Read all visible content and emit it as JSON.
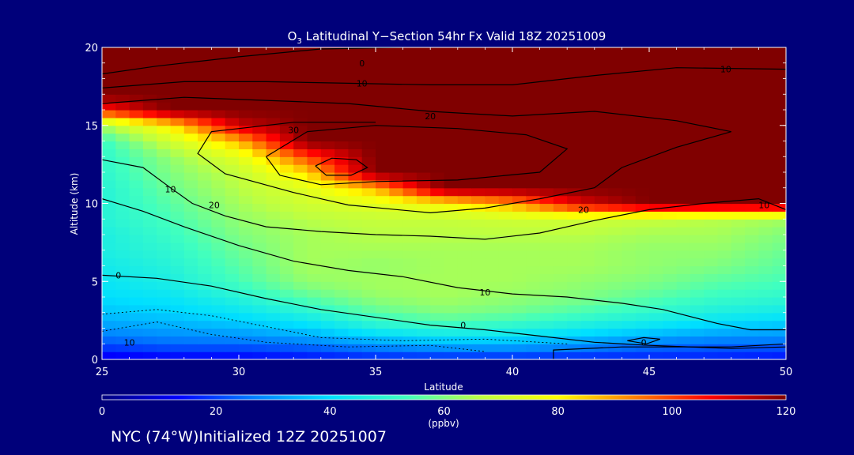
{
  "chart_data": {
    "type": "heatmap",
    "title_main": "O",
    "title_sub": "3",
    "title_rest": " Latitudinal Y−Section 54hr  Fx Valid 18Z 20251009",
    "xlabel": "Latitude",
    "ylabel": "Altitude (km)",
    "xlim": [
      25,
      50
    ],
    "ylim": [
      0,
      20
    ],
    "xticks": [
      "25",
      "30",
      "35",
      "40",
      "45",
      "50"
    ],
    "yticks": [
      "0",
      "5",
      "10",
      "15",
      "20"
    ],
    "x": [
      25,
      27.5,
      30,
      32.5,
      35,
      37.5,
      40,
      42.5,
      45,
      47.5,
      50
    ],
    "y": [
      0,
      1,
      2,
      3,
      4,
      5,
      6,
      7,
      8,
      9,
      10,
      11,
      12,
      13,
      14,
      15,
      16,
      17,
      18,
      19,
      20
    ],
    "z": [
      [
        10,
        12,
        12,
        14,
        16,
        16,
        16,
        16,
        16,
        16,
        14
      ],
      [
        22,
        24,
        24,
        26,
        30,
        34,
        34,
        30,
        26,
        24,
        24
      ],
      [
        30,
        32,
        34,
        38,
        46,
        50,
        48,
        44,
        40,
        36,
        34
      ],
      [
        36,
        38,
        42,
        48,
        56,
        60,
        58,
        54,
        50,
        46,
        44
      ],
      [
        40,
        42,
        48,
        56,
        62,
        64,
        62,
        60,
        56,
        52,
        50
      ],
      [
        42,
        46,
        54,
        62,
        64,
        64,
        64,
        62,
        60,
        56,
        54
      ],
      [
        44,
        48,
        56,
        64,
        62,
        64,
        64,
        64,
        62,
        60,
        56
      ],
      [
        46,
        50,
        58,
        64,
        64,
        64,
        64,
        64,
        62,
        62,
        58
      ],
      [
        46,
        52,
        60,
        64,
        66,
        66,
        66,
        66,
        64,
        64,
        60
      ],
      [
        48,
        54,
        62,
        66,
        68,
        68,
        70,
        70,
        68,
        66,
        64
      ],
      [
        48,
        56,
        64,
        70,
        74,
        80,
        90,
        110,
        120,
        120,
        120
      ],
      [
        48,
        58,
        66,
        74,
        88,
        120,
        120,
        120,
        120,
        120,
        120
      ],
      [
        50,
        60,
        68,
        84,
        120,
        120,
        120,
        120,
        120,
        120,
        120
      ],
      [
        50,
        62,
        74,
        100,
        120,
        120,
        120,
        120,
        120,
        120,
        120
      ],
      [
        52,
        70,
        88,
        120,
        120,
        120,
        120,
        120,
        120,
        120,
        120
      ],
      [
        64,
        82,
        112,
        120,
        120,
        120,
        120,
        120,
        120,
        120,
        120
      ],
      [
        104,
        120,
        120,
        120,
        120,
        120,
        120,
        120,
        120,
        120,
        120
      ],
      [
        120,
        120,
        120,
        120,
        120,
        120,
        120,
        120,
        120,
        120,
        120
      ],
      [
        120,
        120,
        120,
        120,
        120,
        120,
        120,
        120,
        120,
        120,
        120
      ],
      [
        120,
        120,
        120,
        120,
        120,
        120,
        120,
        120,
        120,
        120,
        120
      ],
      [
        120,
        120,
        120,
        120,
        120,
        120,
        120,
        120,
        120,
        120,
        120
      ]
    ],
    "colorbar": {
      "min": 0,
      "max": 120,
      "ticks": [
        "0",
        "20",
        "40",
        "60",
        "80",
        "100",
        "120"
      ],
      "unit": "(ppbv)",
      "colors": [
        "#00007f",
        "#0000ff",
        "#0080ff",
        "#00e0ff",
        "#40ffbf",
        "#bfff40",
        "#ffff00",
        "#ff8000",
        "#ff0000",
        "#800000"
      ]
    },
    "contour_labels": [
      {
        "text": "0",
        "x": 34.5,
        "y": 19.0
      },
      {
        "text": "10",
        "x": 34.5,
        "y": 17.7
      },
      {
        "text": "20",
        "x": 37.0,
        "y": 15.6
      },
      {
        "text": "30",
        "x": 32.0,
        "y": 14.7
      },
      {
        "text": "10",
        "x": 27.5,
        "y": 10.9
      },
      {
        "text": "20",
        "x": 29.1,
        "y": 9.9
      },
      {
        "text": "20",
        "x": 42.6,
        "y": 9.6
      },
      {
        "text": "10",
        "x": 49.2,
        "y": 9.9
      },
      {
        "text": "10",
        "x": 47.8,
        "y": 18.6
      },
      {
        "text": "0",
        "x": 25.6,
        "y": 5.4
      },
      {
        "text": "10",
        "x": 39.0,
        "y": 4.3
      },
      {
        "text": "0",
        "x": 38.2,
        "y": 2.2
      },
      {
        "text": "0",
        "x": 44.8,
        "y": 1.1
      },
      {
        "text": "10",
        "x": 26.0,
        "y": 1.1
      }
    ],
    "grid": false,
    "legend": "colorbar-bottom"
  },
  "footer": {
    "text": "NYC (74°W)Initialized 12Z 20251007"
  }
}
